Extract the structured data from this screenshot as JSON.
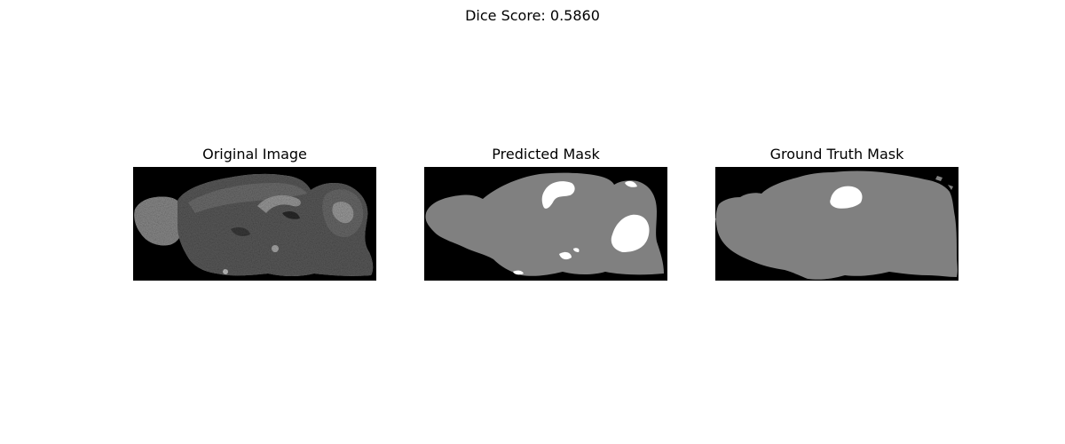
{
  "figure": {
    "title": "Dice Score: 0.5860"
  },
  "panels": [
    {
      "title": "Original Image"
    },
    {
      "title": "Predicted Mask"
    },
    {
      "title": "Ground Truth Mask"
    }
  ],
  "colors": {
    "background": "#000000",
    "mask_gray": "#808080",
    "mask_white": "#ffffff"
  }
}
